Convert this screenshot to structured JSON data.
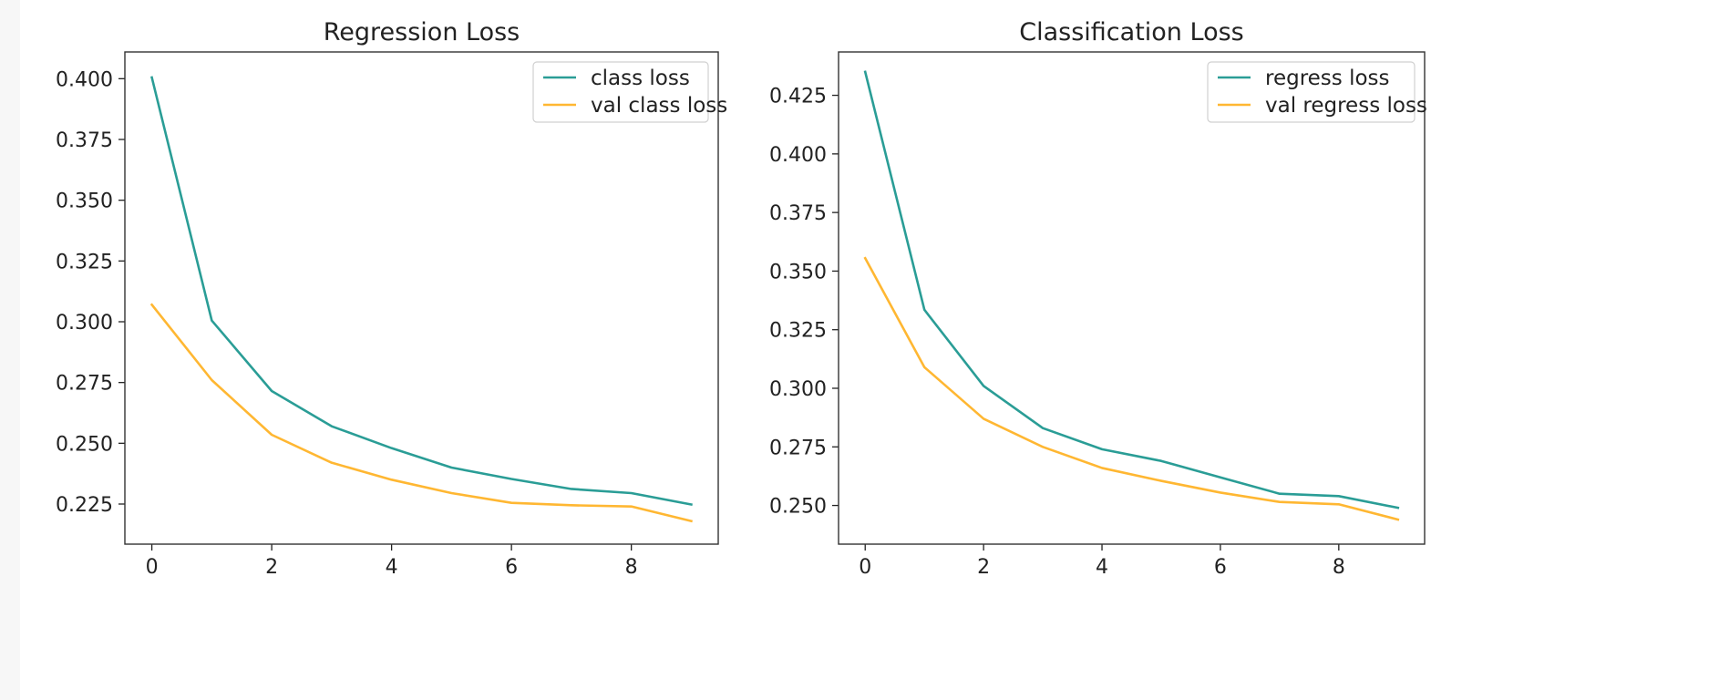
{
  "chart_data": [
    {
      "type": "line",
      "title": "Regression Loss",
      "xlabel": "",
      "ylabel": "",
      "x": [
        0,
        1,
        2,
        3,
        4,
        5,
        6,
        7,
        8,
        9
      ],
      "xlim": [
        -0.45,
        9.45
      ],
      "ylim": [
        0.2085,
        0.411
      ],
      "xticks": [
        0,
        2,
        4,
        6,
        8
      ],
      "yticks": [
        0.225,
        0.25,
        0.275,
        0.3,
        0.325,
        0.35,
        0.375,
        0.4
      ],
      "ytick_labels": [
        "0.225",
        "0.250",
        "0.275",
        "0.300",
        "0.325",
        "0.350",
        "0.375",
        "0.400"
      ],
      "grid": false,
      "legend_position": "top-right",
      "series": [
        {
          "name": "class loss",
          "color": "#2a9d96",
          "values": [
            0.4005,
            0.3005,
            0.2715,
            0.257,
            0.248,
            0.24,
            0.2353,
            0.2312,
            0.2295,
            0.2248
          ]
        },
        {
          "name": "val class loss",
          "color": "#ffb732",
          "values": [
            0.307,
            0.276,
            0.2535,
            0.242,
            0.235,
            0.2295,
            0.2255,
            0.2245,
            0.224,
            0.218
          ]
        }
      ]
    },
    {
      "type": "line",
      "title": "Classification Loss",
      "xlabel": "",
      "ylabel": "",
      "x": [
        0,
        1,
        2,
        3,
        4,
        5,
        6,
        7,
        8,
        9
      ],
      "xlim": [
        -0.45,
        9.45
      ],
      "ylim": [
        0.2335,
        0.4435
      ],
      "xticks": [
        0,
        2,
        4,
        6,
        8
      ],
      "yticks": [
        0.25,
        0.275,
        0.3,
        0.325,
        0.35,
        0.375,
        0.4,
        0.425
      ],
      "ytick_labels": [
        "0.250",
        "0.275",
        "0.300",
        "0.325",
        "0.350",
        "0.375",
        "0.400",
        "0.425"
      ],
      "grid": false,
      "legend_position": "top-right",
      "series": [
        {
          "name": "regress loss",
          "color": "#2a9d96",
          "values": [
            0.435,
            0.3335,
            0.301,
            0.283,
            0.274,
            0.269,
            0.262,
            0.255,
            0.254,
            0.249
          ]
        },
        {
          "name": "val regress loss",
          "color": "#ffb732",
          "values": [
            0.3555,
            0.309,
            0.287,
            0.275,
            0.266,
            0.2605,
            0.2555,
            0.2515,
            0.2505,
            0.244
          ]
        }
      ]
    }
  ]
}
